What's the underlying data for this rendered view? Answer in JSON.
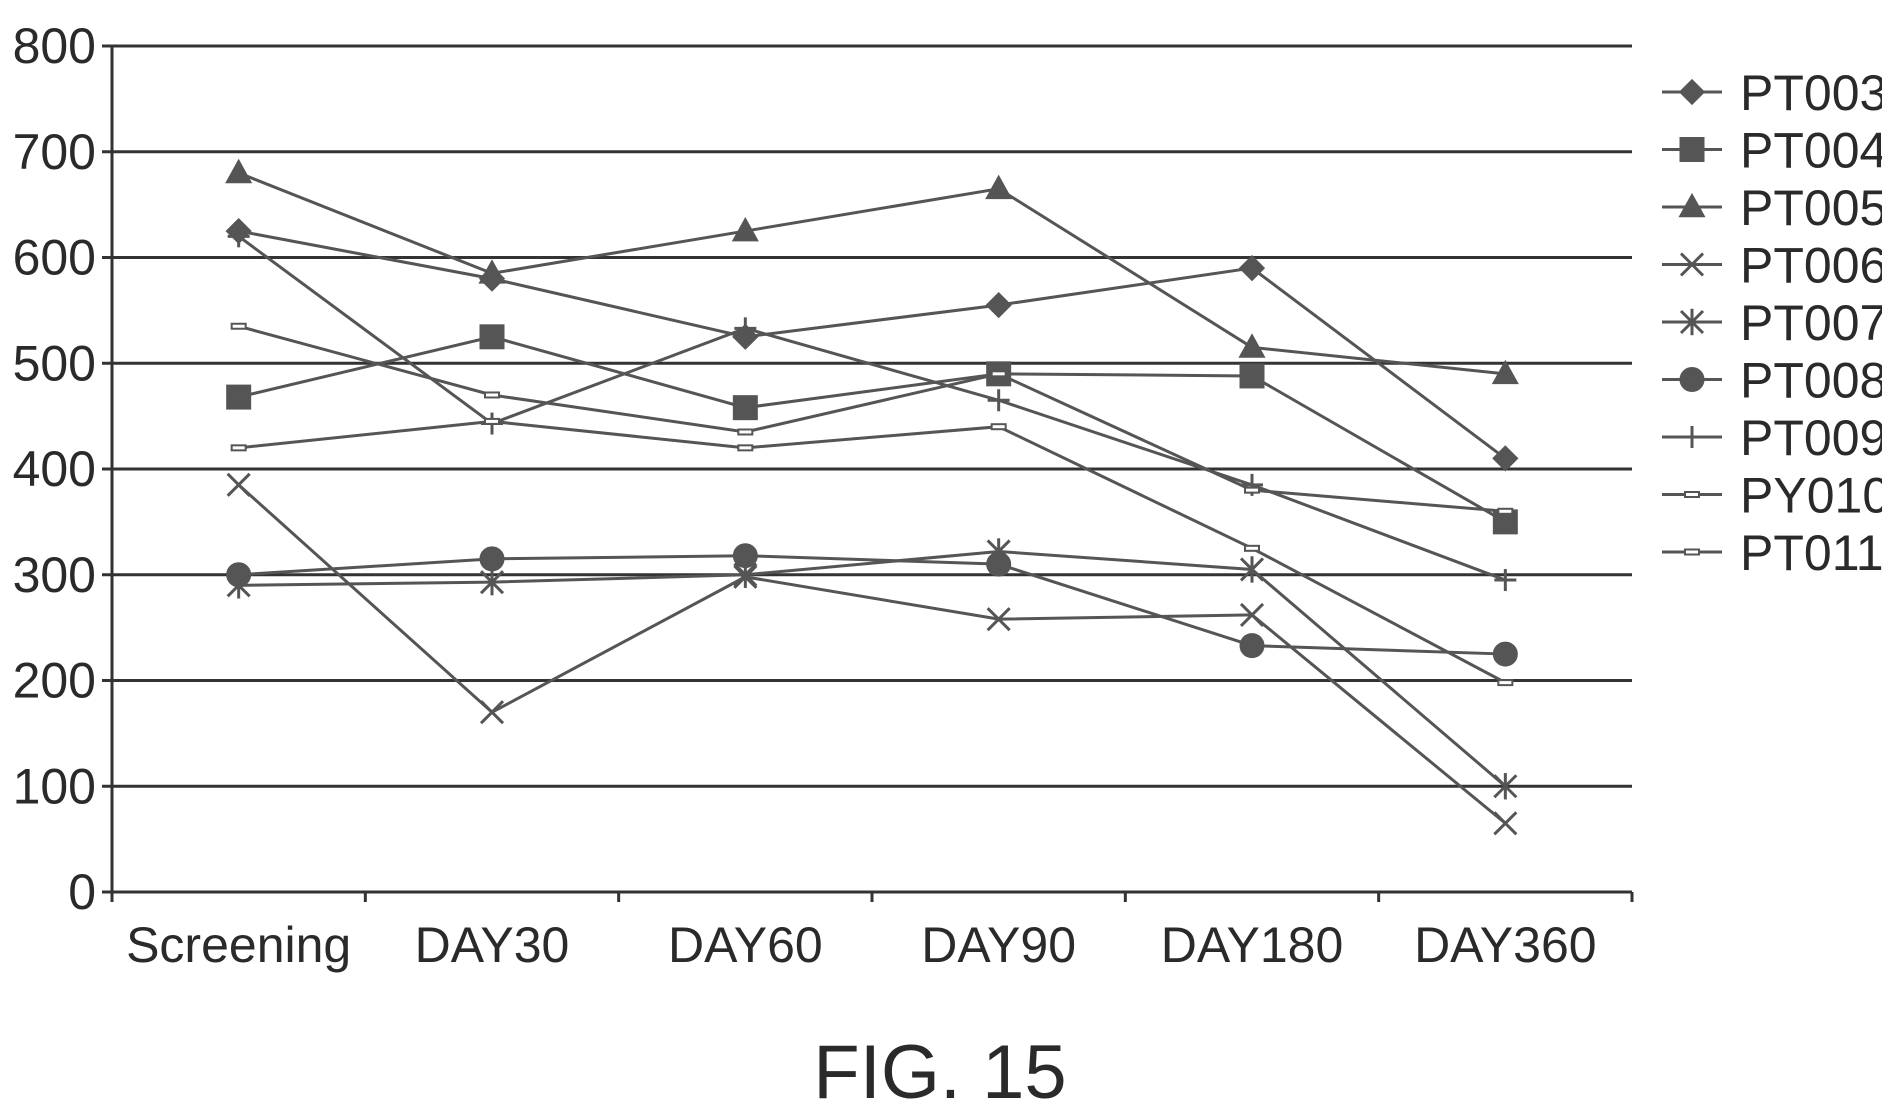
{
  "chart_data": {
    "type": "line",
    "title": "",
    "xlabel": "",
    "ylabel": "",
    "categories": [
      "Screening",
      "DAY30",
      "DAY60",
      "DAY90",
      "DAY180",
      "DAY360"
    ],
    "ylim": [
      0,
      800
    ],
    "yticks": [
      0,
      100,
      200,
      300,
      400,
      500,
      600,
      700,
      800
    ],
    "grid": "horizontal",
    "legend_position": "right",
    "line_color": "#555555",
    "series": [
      {
        "name": "PT003",
        "marker": "diamond",
        "values": [
          625,
          580,
          525,
          555,
          590,
          410
        ]
      },
      {
        "name": "PT004",
        "marker": "square",
        "values": [
          468,
          525,
          458,
          490,
          488,
          350
        ]
      },
      {
        "name": "PT005",
        "marker": "triangle",
        "values": [
          680,
          585,
          625,
          665,
          515,
          490
        ]
      },
      {
        "name": "PT006",
        "marker": "x",
        "values": [
          385,
          170,
          298,
          258,
          262,
          65
        ]
      },
      {
        "name": "PT007",
        "marker": "star",
        "values": [
          290,
          293,
          300,
          322,
          305,
          100
        ]
      },
      {
        "name": "PT008",
        "marker": "circle",
        "values": [
          300,
          315,
          318,
          310,
          233,
          225
        ]
      },
      {
        "name": "PT009",
        "marker": "plus",
        "values": [
          620,
          443,
          533,
          465,
          385,
          295
        ]
      },
      {
        "name": "PY010",
        "marker": "dash",
        "values": [
          535,
          470,
          435,
          490,
          380,
          360
        ]
      },
      {
        "name": "PT011",
        "marker": "dash",
        "values": [
          420,
          445,
          420,
          440,
          325,
          198
        ]
      }
    ]
  },
  "caption": "FIG. 15"
}
